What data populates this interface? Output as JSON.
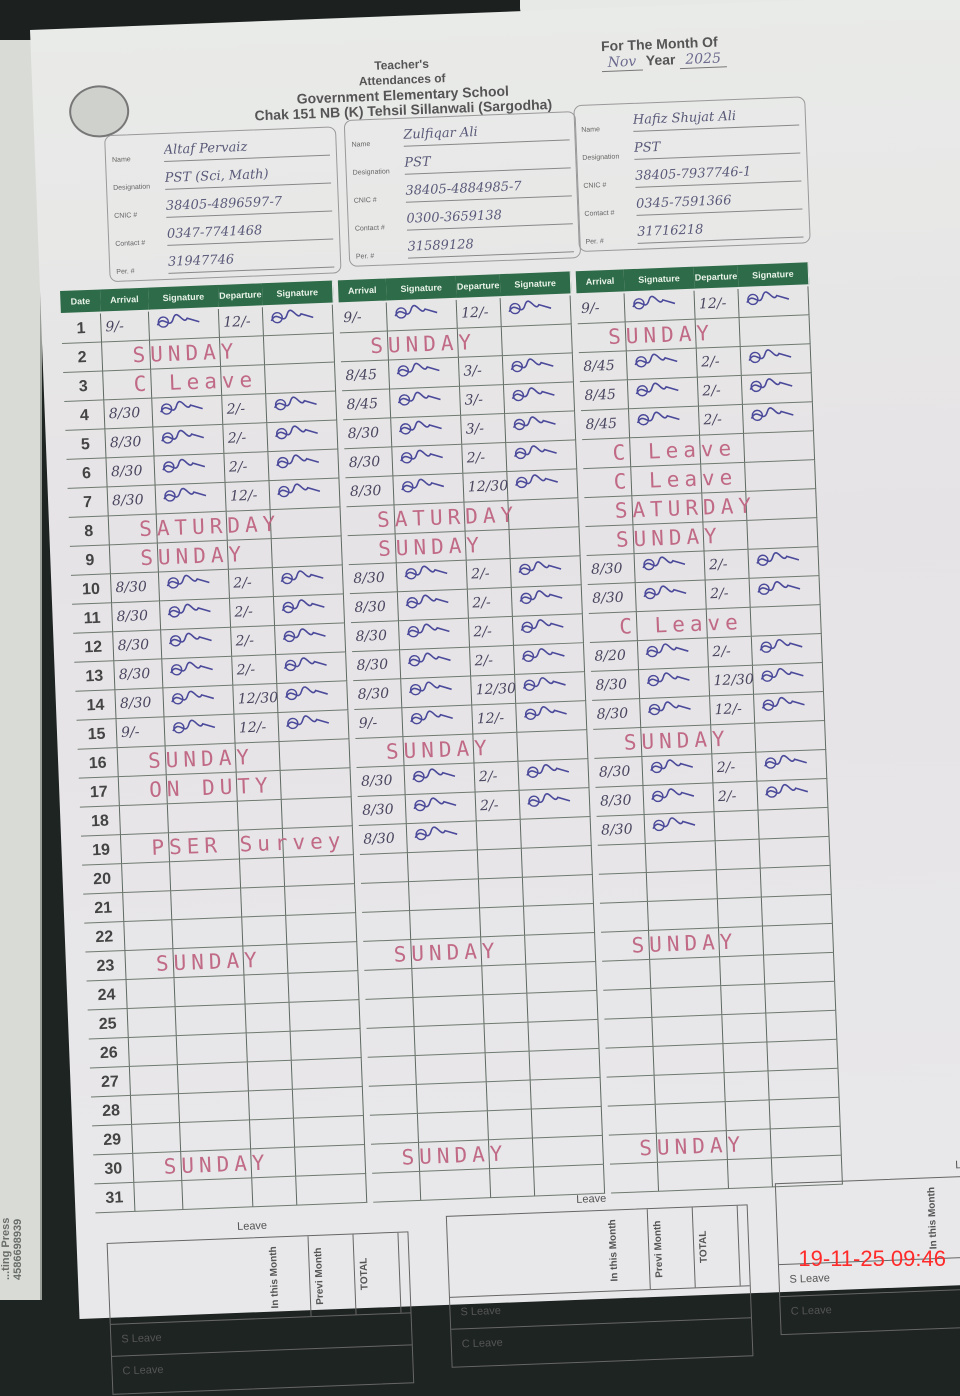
{
  "header": {
    "title_lines": [
      "Teacher's",
      "Attendances of",
      "Government Elementary School",
      "Chak 151 NB (K) Tehsil Sillanwali (Sargodha)"
    ],
    "month_label": "For The Month Of",
    "month": "Nov",
    "year_label": "Year",
    "year": "2025"
  },
  "field_labels": {
    "name": "Name",
    "designation": "Designation",
    "cnic": "CNIC #",
    "contact": "Contact #",
    "per": "Per. #"
  },
  "teachers": [
    {
      "name": "Altaf Pervaiz",
      "designation": "PST (Sci, Math)",
      "cnic": "38405-4896597-7",
      "contact": "0347-7741468",
      "per": "31947746"
    },
    {
      "name": "Zulfiqar Ali",
      "designation": "PST",
      "cnic": "38405-4884985-7",
      "contact": "0300-3659138",
      "per": "31589128"
    },
    {
      "name": "Hafiz Shujat Ali",
      "designation": "PST",
      "cnic": "38405-7937746-1",
      "contact": "0345-7591366",
      "per": "31716218"
    }
  ],
  "table": {
    "date_header": "Date",
    "columns": [
      "Arrival",
      "Signature",
      "Departure",
      "Signature"
    ],
    "days": 31
  },
  "attendance": [
    {
      "1": {
        "arrival": "9/-",
        "departure": "12/-",
        "signed": true
      },
      "2": {
        "note": "SUNDAY"
      },
      "3": {
        "note": "C Leave"
      },
      "4": {
        "arrival": "8/30",
        "departure": "2/-",
        "signed": true
      },
      "5": {
        "arrival": "8/30",
        "departure": "2/-",
        "signed": true
      },
      "6": {
        "arrival": "8/30",
        "departure": "2/-",
        "signed": true
      },
      "7": {
        "arrival": "8/30",
        "departure": "12/-",
        "signed": true
      },
      "8": {
        "note": "SATURDAY"
      },
      "9": {
        "note": "SUNDAY"
      },
      "10": {
        "arrival": "8/30",
        "departure": "2/-",
        "signed": true
      },
      "11": {
        "arrival": "8/30",
        "departure": "2/-",
        "signed": true
      },
      "12": {
        "arrival": "8/30",
        "departure": "2/-",
        "signed": true
      },
      "13": {
        "arrival": "8/30",
        "departure": "2/-",
        "signed": true
      },
      "14": {
        "arrival": "8/30",
        "departure": "12/30",
        "signed": true
      },
      "15": {
        "arrival": "9/-",
        "departure": "12/-",
        "signed": true
      },
      "16": {
        "note": "SUNDAY"
      },
      "17": {
        "note": "ON DUTY"
      },
      "19": {
        "note": "PSER Survey"
      },
      "23": {
        "note": "SUNDAY"
      },
      "30": {
        "note": "SUNDAY"
      }
    },
    {
      "1": {
        "arrival": "9/-",
        "departure": "12/-",
        "signed": true
      },
      "2": {
        "note": "SUNDAY"
      },
      "3": {
        "arrival": "8/45",
        "departure": "3/-",
        "signed": true
      },
      "4": {
        "arrival": "8/45",
        "departure": "3/-",
        "signed": true
      },
      "5": {
        "arrival": "8/30",
        "departure": "3/-",
        "signed": true
      },
      "6": {
        "arrival": "8/30",
        "departure": "2/-",
        "signed": true
      },
      "7": {
        "arrival": "8/30",
        "departure": "12/30",
        "signed": true
      },
      "8": {
        "note": "SATURDAY"
      },
      "9": {
        "note": "SUNDAY"
      },
      "10": {
        "arrival": "8/30",
        "departure": "2/-",
        "signed": true
      },
      "11": {
        "arrival": "8/30",
        "departure": "2/-",
        "signed": true
      },
      "12": {
        "arrival": "8/30",
        "departure": "2/-",
        "signed": true
      },
      "13": {
        "arrival": "8/30",
        "departure": "2/-",
        "signed": true
      },
      "14": {
        "arrival": "8/30",
        "departure": "12/30",
        "signed": true
      },
      "15": {
        "arrival": "9/-",
        "departure": "12/-",
        "signed": true
      },
      "16": {
        "note": "SUNDAY"
      },
      "17": {
        "arrival": "8/30",
        "departure": "2/-",
        "signed": true
      },
      "18": {
        "arrival": "8/30",
        "departure": "2/-",
        "signed": true
      },
      "19": {
        "arrival": "8/30",
        "signed": true
      },
      "23": {
        "note": "SUNDAY"
      },
      "30": {
        "note": "SUNDAY"
      }
    },
    {
      "1": {
        "arrival": "9/-",
        "departure": "12/-",
        "signed": true
      },
      "2": {
        "note": "SUNDAY"
      },
      "3": {
        "arrival": "8/45",
        "departure": "2/-",
        "signed": true
      },
      "4": {
        "arrival": "8/45",
        "departure": "2/-",
        "signed": true
      },
      "5": {
        "arrival": "8/45",
        "departure": "2/-",
        "signed": true
      },
      "6": {
        "note": "C Leave"
      },
      "7": {
        "note": "C Leave"
      },
      "8": {
        "note": "SATURDAY"
      },
      "9": {
        "note": "SUNDAY"
      },
      "10": {
        "arrival": "8/30",
        "departure": "2/-",
        "signed": true
      },
      "11": {
        "arrival": "8/30",
        "departure": "2/-",
        "signed": true
      },
      "12": {
        "note": "C Leave"
      },
      "13": {
        "arrival": "8/20",
        "departure": "2/-",
        "signed": true
      },
      "14": {
        "arrival": "8/30",
        "departure": "12/30",
        "signed": true
      },
      "15": {
        "arrival": "8/30",
        "departure": "12/-",
        "signed": true
      },
      "16": {
        "note": "SUNDAY"
      },
      "17": {
        "arrival": "8/30",
        "departure": "2/-",
        "signed": true
      },
      "18": {
        "arrival": "8/30",
        "departure": "2/-",
        "signed": true
      },
      "19": {
        "arrival": "8/30",
        "signed": true
      },
      "23": {
        "note": "SUNDAY"
      },
      "30": {
        "note": "SUNDAY"
      }
    }
  ],
  "leave": {
    "title": "Leave",
    "columns": [
      "In this Month",
      "Previ Month",
      "TOTAL"
    ],
    "rows": [
      "S Leave",
      "C Leave"
    ]
  },
  "side_print": "...ting Press 4586698939",
  "timestamp": "19-11-25  09:46",
  "colors": {
    "header_green": "#2e6b48",
    "note_pink": "#c06a86",
    "ink": "#4a4660",
    "timestamp_red": "#ff2a2a"
  }
}
